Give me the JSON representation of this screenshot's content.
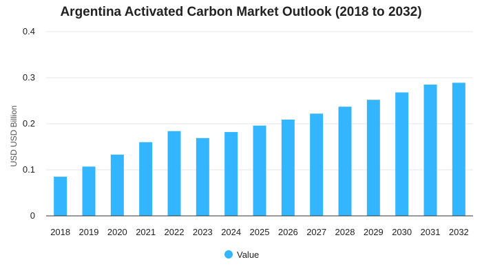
{
  "chart_data": {
    "type": "bar",
    "title": "Argentina Activated Carbon Market Outlook (2018 to 2032)",
    "xlabel": "",
    "ylabel": "USD USD Billion",
    "categories": [
      "2018",
      "2019",
      "2020",
      "2021",
      "2022",
      "2023",
      "2024",
      "2025",
      "2026",
      "2027",
      "2028",
      "2029",
      "2030",
      "2031",
      "2032"
    ],
    "series": [
      {
        "name": "Value",
        "values": [
          0.085,
          0.107,
          0.133,
          0.16,
          0.184,
          0.169,
          0.182,
          0.196,
          0.209,
          0.222,
          0.237,
          0.252,
          0.268,
          0.285,
          0.289
        ]
      }
    ],
    "ylim": [
      0,
      0.4
    ],
    "yticks": [
      "0",
      "0.1",
      "0.2",
      "0.3",
      "0.4"
    ],
    "grid": true,
    "legend_position": "bottom",
    "colors": {
      "bar": "#33b5ff",
      "grid": "#e6e6e6",
      "axis": "#333333",
      "text": "#222222"
    }
  }
}
